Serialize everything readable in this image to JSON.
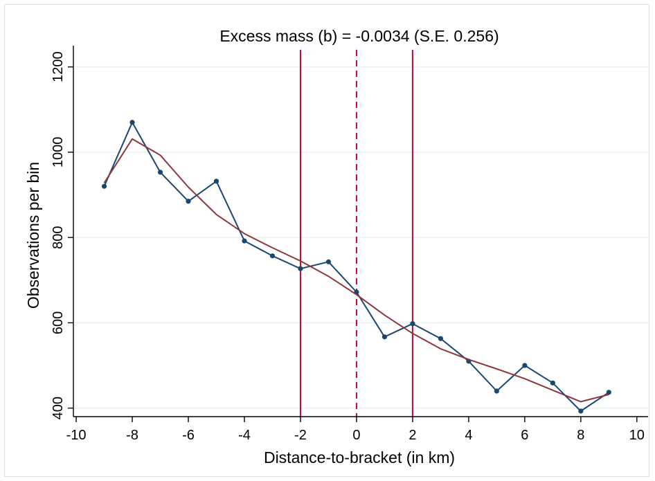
{
  "chart_data": {
    "type": "line",
    "title": "Excess mass (b) = -0.0034 (S.E. 0.256)",
    "xlabel": "Distance-to-bracket (in km)",
    "ylabel": "Observations per bin",
    "xlim": [
      -10.1,
      10.4
    ],
    "ylim": [
      380,
      1240
    ],
    "xticks": [
      -10,
      -8,
      -6,
      -4,
      -2,
      0,
      2,
      4,
      6,
      8,
      10
    ],
    "yticks": [
      400,
      600,
      800,
      1000,
      1200
    ],
    "grid": true,
    "legend": "none",
    "series": [
      {
        "kind": "observed",
        "color": "#1a476f",
        "markers": true,
        "x": [
          -9,
          -8,
          -7,
          -6,
          -5,
          -4,
          -3,
          -2,
          -1,
          0,
          1,
          2,
          3,
          4,
          5,
          6,
          7,
          8,
          9
        ],
        "y": [
          920,
          1070,
          953,
          885,
          932,
          792,
          757,
          727,
          743,
          672,
          567,
          598,
          563,
          510,
          440,
          500,
          459,
          393,
          437
        ]
      },
      {
        "kind": "fitted",
        "color": "#90353b",
        "markers": false,
        "x": [
          -9,
          -8,
          -7,
          -6,
          -5,
          -4,
          -3,
          -2,
          -1,
          0,
          1,
          2,
          3,
          4,
          5,
          6,
          7,
          8,
          9
        ],
        "y": [
          928,
          1031,
          993,
          918,
          854,
          809,
          776,
          745,
          709,
          666,
          618,
          575,
          539,
          514,
          492,
          469,
          442,
          415,
          432
        ]
      }
    ],
    "vlines": [
      {
        "x": -2,
        "style": "solid",
        "color": "#c10534"
      },
      {
        "x": 0,
        "style": "dashed",
        "color": "#c10534"
      },
      {
        "x": 2,
        "style": "solid",
        "color": "#c10534"
      }
    ],
    "colors": {
      "gridline": "#eaf2f3",
      "axis": "#000000"
    }
  }
}
